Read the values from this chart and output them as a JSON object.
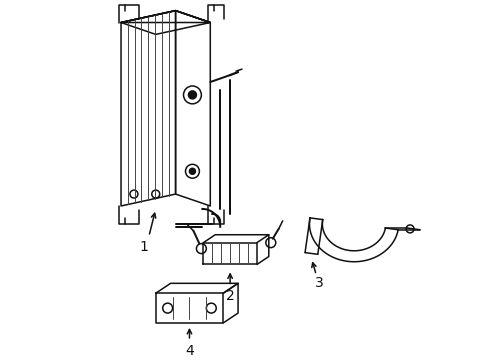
{
  "background_color": "#ffffff",
  "line_color": "#111111",
  "line_width": 1.1,
  "figsize": [
    4.9,
    3.6
  ],
  "dpi": 100
}
